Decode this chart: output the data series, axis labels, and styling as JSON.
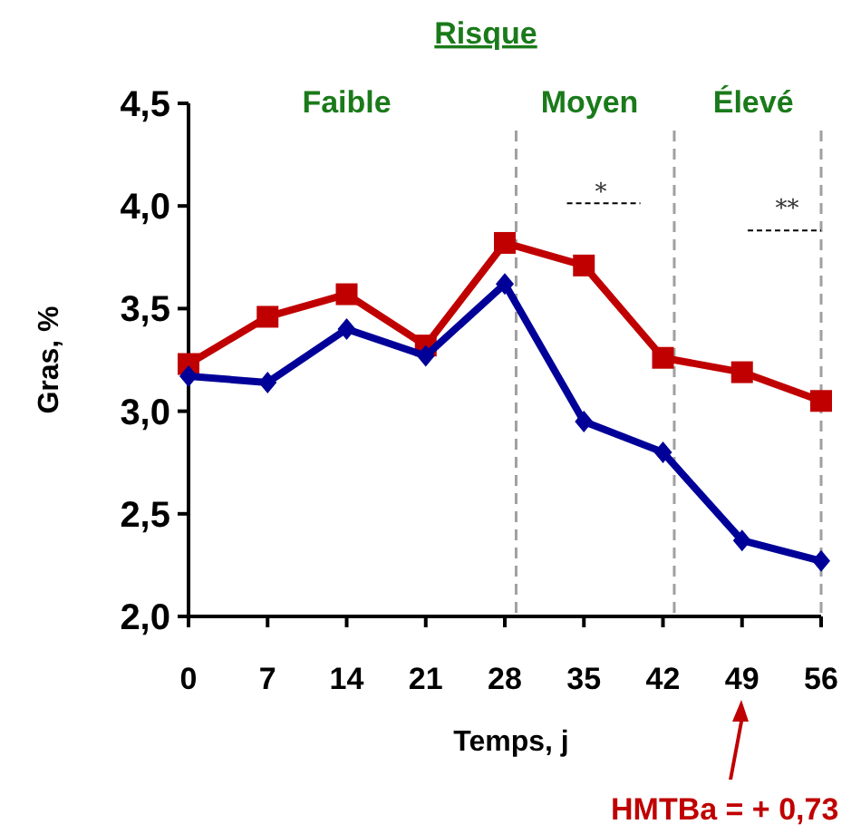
{
  "chart_data": {
    "type": "line",
    "title": "Risque",
    "xlabel": "Temps, j",
    "ylabel": "Gras, %",
    "x": [
      0,
      7,
      14,
      21,
      28,
      35,
      42,
      49,
      56
    ],
    "series": [
      {
        "color": "#c00000",
        "marker": "square",
        "values": [
          3.23,
          3.46,
          3.57,
          3.32,
          3.82,
          3.71,
          3.26,
          3.19,
          3.05
        ]
      },
      {
        "color": "#000099",
        "marker": "diamond",
        "values": [
          3.17,
          3.14,
          3.4,
          3.27,
          3.62,
          2.95,
          2.8,
          2.37,
          2.27
        ]
      }
    ],
    "xlim": [
      0,
      56
    ],
    "ylim": [
      2.0,
      4.5
    ],
    "xticks": [
      0,
      7,
      14,
      21,
      28,
      35,
      42,
      49,
      56
    ],
    "yticks": [
      {
        "value": 2.0,
        "label": "2,0"
      },
      {
        "value": 2.5,
        "label": "2,5"
      },
      {
        "value": 3.0,
        "label": "3,0"
      },
      {
        "value": 3.5,
        "label": "3,5"
      },
      {
        "value": 4.0,
        "label": "4,0"
      },
      {
        "value": 4.5,
        "label": "4,5"
      }
    ],
    "ref_lines": [
      {
        "axis": "x",
        "value": 29,
        "color": "#a0a0a0",
        "line_style": "dashed"
      },
      {
        "axis": "x",
        "value": 43,
        "color": "#a0a0a0",
        "line_style": "dashed"
      },
      {
        "axis": "x",
        "value": 56,
        "color": "#a0a0a0",
        "line_style": "dashed"
      }
    ],
    "annotations": [
      "Faible",
      "Moyen",
      "Élevé",
      "*",
      "**",
      "HMTBa = + 0,73"
    ],
    "grid": false,
    "line_style": "solid"
  }
}
